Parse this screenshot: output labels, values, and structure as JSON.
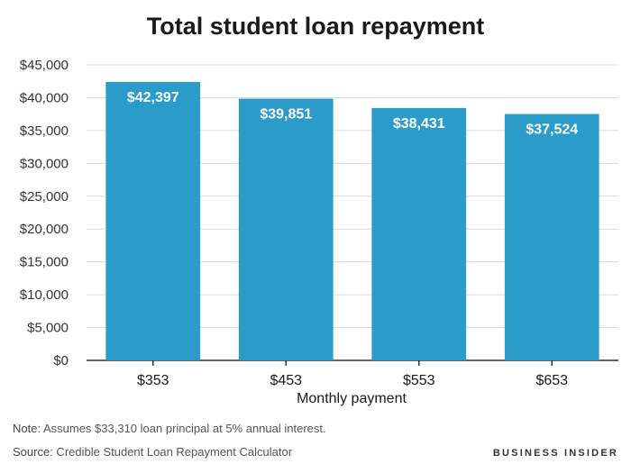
{
  "chart_data": {
    "type": "bar",
    "title": "Total student loan repayment",
    "xlabel": "Monthly payment",
    "ylabel": "",
    "categories": [
      "$353",
      "$453",
      "$553",
      "$653"
    ],
    "values": [
      42397,
      39851,
      38431,
      37524
    ],
    "data_labels": [
      "$42,397",
      "$39,851",
      "$38,431",
      "$37,524"
    ],
    "ylim": [
      0,
      45000
    ],
    "yticks": [
      0,
      5000,
      10000,
      15000,
      20000,
      25000,
      30000,
      35000,
      40000,
      45000
    ],
    "ytick_labels": [
      "$0",
      "$5,000",
      "$10,000",
      "$15,000",
      "$20,000",
      "$25,000",
      "$30,000",
      "$35,000",
      "$40,000",
      "$45,000"
    ],
    "grid": true,
    "bar_color": "#2b9bc9",
    "grid_color": "#dcdcdc"
  },
  "footer": {
    "note_label": "Note:",
    "note_text": " Assumes $33,310 loan principal at 5% annual interest.",
    "source_label": "Source:",
    "source_text": " Credible Student Loan Repayment Calculator",
    "brand": "BUSINESS INSIDER"
  }
}
